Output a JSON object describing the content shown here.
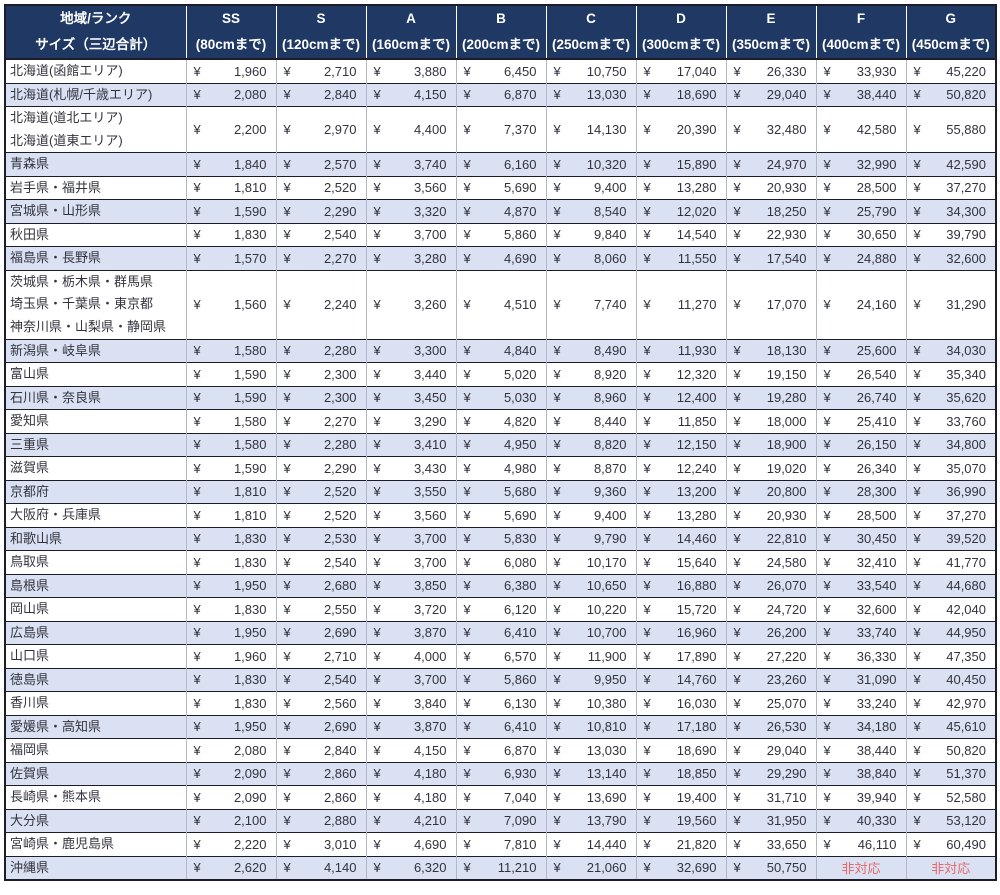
{
  "currency_symbol": "¥",
  "na_label": "非対応",
  "colors": {
    "header_bg": "#1f3864",
    "header_text": "#ffffff",
    "row_shade": "#d9e1f2",
    "body_text": "#33333f",
    "na_text": "#e8686a"
  },
  "header": {
    "region_line1": "地域/ランク",
    "region_line2": "サイズ（三辺合計）",
    "columns": [
      {
        "rank": "SS",
        "size": "(80cmまで)"
      },
      {
        "rank": "S",
        "size": "(120cmまで)"
      },
      {
        "rank": "A",
        "size": "(160cmまで)"
      },
      {
        "rank": "B",
        "size": "(200cmまで)"
      },
      {
        "rank": "C",
        "size": "(250cmまで)"
      },
      {
        "rank": "D",
        "size": "(300cmまで)"
      },
      {
        "rank": "E",
        "size": "(350cmまで)"
      },
      {
        "rank": "F",
        "size": "(400cmまで)"
      },
      {
        "rank": "G",
        "size": "(450cmまで)"
      }
    ]
  },
  "rows": [
    {
      "region": "北海道(函館エリア)",
      "lines": 1,
      "values": [
        "1,960",
        "2,710",
        "3,880",
        "6,450",
        "10,750",
        "17,040",
        "26,330",
        "33,930",
        "45,220"
      ]
    },
    {
      "region": "北海道(札幌/千歳エリア)",
      "lines": 1,
      "values": [
        "2,080",
        "2,840",
        "4,150",
        "6,870",
        "13,030",
        "18,690",
        "29,040",
        "38,440",
        "50,820"
      ]
    },
    {
      "region": "北海道(道北エリア)\n北海道(道東エリア)",
      "lines": 2,
      "values": [
        "2,200",
        "2,970",
        "4,400",
        "7,370",
        "14,130",
        "20,390",
        "32,480",
        "42,580",
        "55,880"
      ]
    },
    {
      "region": "青森県",
      "lines": 1,
      "values": [
        "1,840",
        "2,570",
        "3,740",
        "6,160",
        "10,320",
        "15,890",
        "24,970",
        "32,990",
        "42,590"
      ]
    },
    {
      "region": "岩手県・福井県",
      "lines": 1,
      "values": [
        "1,810",
        "2,520",
        "3,560",
        "5,690",
        "9,400",
        "13,280",
        "20,930",
        "28,500",
        "37,270"
      ]
    },
    {
      "region": "宮城県・山形県",
      "lines": 1,
      "values": [
        "1,590",
        "2,290",
        "3,320",
        "4,870",
        "8,540",
        "12,020",
        "18,250",
        "25,790",
        "34,300"
      ]
    },
    {
      "region": "秋田県",
      "lines": 1,
      "values": [
        "1,830",
        "2,540",
        "3,700",
        "5,860",
        "9,840",
        "14,540",
        "22,930",
        "30,650",
        "39,790"
      ]
    },
    {
      "region": "福島県・長野県",
      "lines": 1,
      "values": [
        "1,570",
        "2,270",
        "3,280",
        "4,690",
        "8,060",
        "11,550",
        "17,540",
        "24,880",
        "32,600"
      ]
    },
    {
      "region": "茨城県・栃木県・群馬県\n埼玉県・千葉県・東京都\n神奈川県・山梨県・静岡県",
      "lines": 3,
      "values": [
        "1,560",
        "2,240",
        "3,260",
        "4,510",
        "7,740",
        "11,270",
        "17,070",
        "24,160",
        "31,290"
      ]
    },
    {
      "region": "新潟県・岐阜県",
      "lines": 1,
      "values": [
        "1,580",
        "2,280",
        "3,300",
        "4,840",
        "8,490",
        "11,930",
        "18,130",
        "25,600",
        "34,030"
      ]
    },
    {
      "region": "富山県",
      "lines": 1,
      "values": [
        "1,590",
        "2,300",
        "3,440",
        "5,020",
        "8,920",
        "12,320",
        "19,150",
        "26,540",
        "35,340"
      ]
    },
    {
      "region": "石川県・奈良県",
      "lines": 1,
      "values": [
        "1,590",
        "2,300",
        "3,450",
        "5,030",
        "8,960",
        "12,400",
        "19,280",
        "26,740",
        "35,620"
      ]
    },
    {
      "region": "愛知県",
      "lines": 1,
      "values": [
        "1,580",
        "2,270",
        "3,290",
        "4,820",
        "8,440",
        "11,850",
        "18,000",
        "25,410",
        "33,760"
      ]
    },
    {
      "region": "三重県",
      "lines": 1,
      "values": [
        "1,580",
        "2,280",
        "3,410",
        "4,950",
        "8,820",
        "12,150",
        "18,900",
        "26,150",
        "34,800"
      ]
    },
    {
      "region": "滋賀県",
      "lines": 1,
      "values": [
        "1,590",
        "2,290",
        "3,430",
        "4,980",
        "8,870",
        "12,240",
        "19,020",
        "26,340",
        "35,070"
      ]
    },
    {
      "region": "京都府",
      "lines": 1,
      "values": [
        "1,810",
        "2,520",
        "3,550",
        "5,680",
        "9,360",
        "13,200",
        "20,800",
        "28,300",
        "36,990"
      ]
    },
    {
      "region": "大阪府・兵庫県",
      "lines": 1,
      "values": [
        "1,810",
        "2,520",
        "3,560",
        "5,690",
        "9,400",
        "13,280",
        "20,930",
        "28,500",
        "37,270"
      ]
    },
    {
      "region": "和歌山県",
      "lines": 1,
      "values": [
        "1,830",
        "2,530",
        "3,700",
        "5,830",
        "9,790",
        "14,460",
        "22,810",
        "30,450",
        "39,520"
      ]
    },
    {
      "region": "鳥取県",
      "lines": 1,
      "values": [
        "1,830",
        "2,540",
        "3,700",
        "6,080",
        "10,170",
        "15,640",
        "24,580",
        "32,410",
        "41,770"
      ]
    },
    {
      "region": "島根県",
      "lines": 1,
      "values": [
        "1,950",
        "2,680",
        "3,850",
        "6,380",
        "10,650",
        "16,880",
        "26,070",
        "33,540",
        "44,680"
      ]
    },
    {
      "region": "岡山県",
      "lines": 1,
      "values": [
        "1,830",
        "2,550",
        "3,720",
        "6,120",
        "10,220",
        "15,720",
        "24,720",
        "32,600",
        "42,040"
      ]
    },
    {
      "region": "広島県",
      "lines": 1,
      "values": [
        "1,950",
        "2,690",
        "3,870",
        "6,410",
        "10,700",
        "16,960",
        "26,200",
        "33,740",
        "44,950"
      ]
    },
    {
      "region": "山口県",
      "lines": 1,
      "values": [
        "1,960",
        "2,710",
        "4,000",
        "6,570",
        "11,900",
        "17,890",
        "27,220",
        "36,330",
        "47,350"
      ]
    },
    {
      "region": "徳島県",
      "lines": 1,
      "values": [
        "1,830",
        "2,540",
        "3,700",
        "5,860",
        "9,950",
        "14,760",
        "23,260",
        "31,090",
        "40,450"
      ]
    },
    {
      "region": "香川県",
      "lines": 1,
      "values": [
        "1,830",
        "2,560",
        "3,840",
        "6,130",
        "10,380",
        "16,030",
        "25,070",
        "33,240",
        "42,970"
      ]
    },
    {
      "region": "愛媛県・高知県",
      "lines": 1,
      "values": [
        "1,950",
        "2,690",
        "3,870",
        "6,410",
        "10,810",
        "17,180",
        "26,530",
        "34,180",
        "45,610"
      ]
    },
    {
      "region": "福岡県",
      "lines": 1,
      "values": [
        "2,080",
        "2,840",
        "4,150",
        "6,870",
        "13,030",
        "18,690",
        "29,040",
        "38,440",
        "50,820"
      ]
    },
    {
      "region": "佐賀県",
      "lines": 1,
      "values": [
        "2,090",
        "2,860",
        "4,180",
        "6,930",
        "13,140",
        "18,850",
        "29,290",
        "38,840",
        "51,370"
      ]
    },
    {
      "region": "長崎県・熊本県",
      "lines": 1,
      "values": [
        "2,090",
        "2,860",
        "4,180",
        "7,040",
        "13,690",
        "19,400",
        "31,710",
        "39,940",
        "52,580"
      ]
    },
    {
      "region": "大分県",
      "lines": 1,
      "values": [
        "2,100",
        "2,880",
        "4,210",
        "7,090",
        "13,790",
        "19,560",
        "31,950",
        "40,330",
        "53,120"
      ]
    },
    {
      "region": "宮崎県・鹿児島県",
      "lines": 1,
      "values": [
        "2,220",
        "3,010",
        "4,690",
        "7,810",
        "14,440",
        "21,820",
        "33,650",
        "46,110",
        "60,490"
      ]
    },
    {
      "region": "沖縄県",
      "lines": 1,
      "values": [
        "2,620",
        "4,140",
        "6,320",
        "11,210",
        "21,060",
        "32,690",
        "50,750",
        "非対応",
        "非対応"
      ]
    }
  ]
}
